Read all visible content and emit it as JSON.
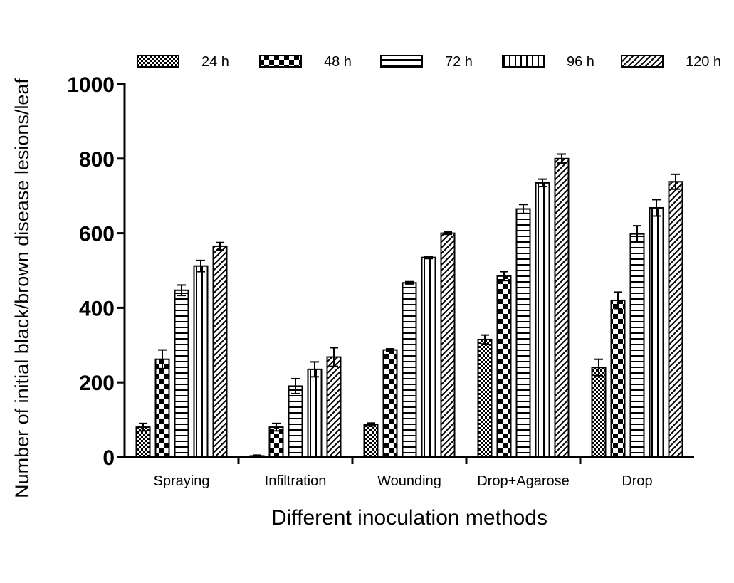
{
  "chart_data": {
    "type": "bar",
    "title": "",
    "xlabel": "Different inoculation methods",
    "ylabel": "Number of initial black/brown disease lesions/leaf",
    "ylim": [
      0,
      1000
    ],
    "yticks": [
      "0",
      "200",
      "400",
      "600",
      "800",
      "1000"
    ],
    "categories": [
      "Spraying",
      "Infiltration",
      "Wounding",
      "Drop+Agarose",
      "Drop"
    ],
    "legend_position": "top",
    "series": [
      {
        "name": "24 h",
        "pattern": "dots",
        "values": [
          80,
          3,
          87,
          315,
          240
        ],
        "errors": [
          10,
          2,
          4,
          12,
          22
        ]
      },
      {
        "name": "48 h",
        "pattern": "checker",
        "values": [
          262,
          80,
          287,
          485,
          420
        ],
        "errors": [
          25,
          10,
          3,
          12,
          22
        ]
      },
      {
        "name": "72 h",
        "pattern": "horizontal",
        "values": [
          447,
          190,
          467,
          665,
          598
        ],
        "errors": [
          14,
          20,
          3,
          12,
          22
        ]
      },
      {
        "name": "96 h",
        "pattern": "vertical",
        "values": [
          512,
          235,
          535,
          735,
          668
        ],
        "errors": [
          15,
          20,
          3,
          10,
          22
        ]
      },
      {
        "name": "120 h",
        "pattern": "diagonal",
        "values": [
          565,
          268,
          600,
          800,
          738
        ],
        "errors": [
          10,
          25,
          3,
          12,
          20
        ]
      }
    ]
  }
}
